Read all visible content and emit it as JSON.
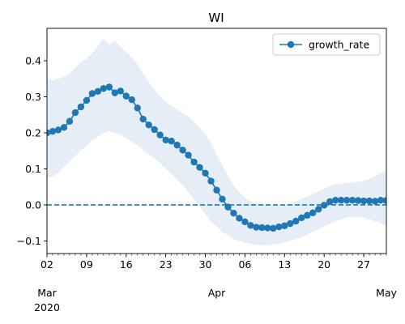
{
  "chart_data": {
    "type": "line",
    "title": "WI",
    "xlabel": "",
    "ylabel": "",
    "x_start": "2020-03-02",
    "x_end": "2020-05-01",
    "ylim": [
      -0.135,
      0.49
    ],
    "y_ticks": [
      "−0.1",
      "0.0",
      "0.1",
      "0.2",
      "0.3",
      "0.4"
    ],
    "x_ticks": [
      "02",
      "09",
      "16",
      "23",
      "30",
      "06",
      "13",
      "20",
      "27"
    ],
    "month_labels": [
      "Mar\n2020",
      "Apr",
      "May"
    ],
    "legend": {
      "position": "top-right",
      "entries": [
        "growth_rate"
      ]
    },
    "grid": false,
    "colors": {
      "series": "#1f77b4",
      "band": "#cfe0f0"
    },
    "reference_line": {
      "y": 0.0,
      "style": "dashed"
    },
    "series": [
      {
        "name": "growth_rate",
        "values": [
          0.2,
          0.204,
          0.208,
          0.215,
          0.232,
          0.256,
          0.272,
          0.29,
          0.309,
          0.315,
          0.323,
          0.327,
          0.311,
          0.316,
          0.302,
          0.292,
          0.269,
          0.238,
          0.222,
          0.209,
          0.194,
          0.18,
          0.177,
          0.166,
          0.152,
          0.138,
          0.119,
          0.104,
          0.088,
          0.066,
          0.041,
          0.016,
          -0.006,
          -0.023,
          -0.037,
          -0.047,
          -0.057,
          -0.062,
          -0.063,
          -0.064,
          -0.065,
          -0.061,
          -0.058,
          -0.052,
          -0.045,
          -0.036,
          -0.029,
          -0.022,
          -0.012,
          -0.001,
          0.009,
          0.013,
          0.013,
          0.013,
          0.013,
          0.012,
          0.011,
          0.011,
          0.01,
          0.013,
          0.012,
          0.011
        ]
      }
    ],
    "band": {
      "lower": [
        0.075,
        0.079,
        0.09,
        0.105,
        0.12,
        0.135,
        0.15,
        0.165,
        0.18,
        0.19,
        0.2,
        0.205,
        0.2,
        0.195,
        0.185,
        0.175,
        0.165,
        0.15,
        0.14,
        0.13,
        0.115,
        0.1,
        0.085,
        0.07,
        0.055,
        0.035,
        0.015,
        -0.005,
        -0.025,
        -0.045,
        -0.06,
        -0.075,
        -0.085,
        -0.095,
        -0.1,
        -0.105,
        -0.108,
        -0.11,
        -0.112,
        -0.112,
        -0.11,
        -0.108,
        -0.105,
        -0.1,
        -0.095,
        -0.09,
        -0.083,
        -0.075,
        -0.067,
        -0.06,
        -0.052,
        -0.045,
        -0.04,
        -0.035,
        -0.033,
        -0.033,
        -0.035,
        -0.04,
        -0.045,
        -0.05,
        -0.058,
        -0.068
      ],
      "upper": [
        0.35,
        0.345,
        0.35,
        0.355,
        0.365,
        0.38,
        0.395,
        0.405,
        0.42,
        0.44,
        0.462,
        0.445,
        0.455,
        0.44,
        0.425,
        0.41,
        0.39,
        0.365,
        0.34,
        0.32,
        0.3,
        0.285,
        0.275,
        0.265,
        0.255,
        0.245,
        0.23,
        0.215,
        0.195,
        0.17,
        0.14,
        0.11,
        0.08,
        0.055,
        0.035,
        0.02,
        0.01,
        0.005,
        0.002,
        0.0,
        -0.002,
        -0.002,
        0.0,
        0.005,
        0.01,
        0.017,
        0.023,
        0.03,
        0.037,
        0.045,
        0.052,
        0.057,
        0.06,
        0.06,
        0.062,
        0.064,
        0.067,
        0.072,
        0.08,
        0.088,
        0.096,
        0.108
      ]
    }
  }
}
